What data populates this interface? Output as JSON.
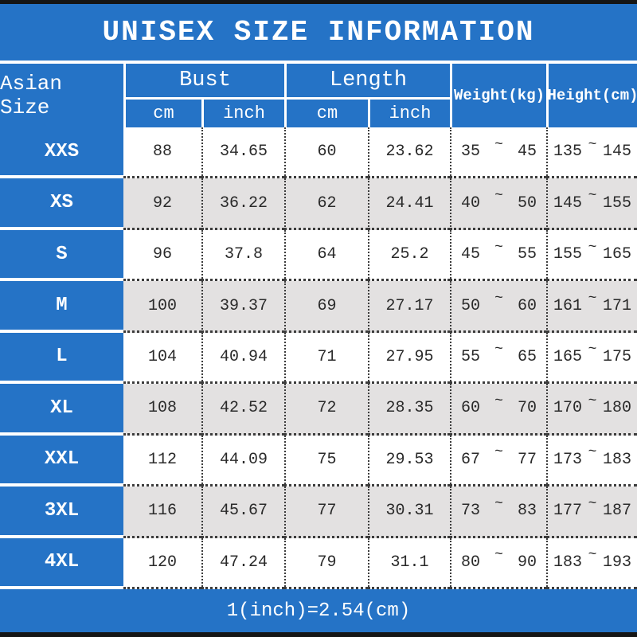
{
  "title": "UNISEX SIZE INFORMATION",
  "footer_note": "1(inch)=2.54(cm)",
  "tilde": "~",
  "colors": {
    "blue": "#2573c6",
    "alt_row_gray": "#e3e1e1",
    "top_bottom_bar": "#151515",
    "text": "#2a2a2a"
  },
  "header": {
    "size_column": "Asian Size",
    "bust_group": "Bust",
    "length_group": "Length",
    "sub_cm": "cm",
    "sub_inch": "inch",
    "weight_column": "Weight(kg)",
    "height_column": "Height(cm)"
  },
  "rows": [
    {
      "size": "XXS",
      "bust_cm": "88",
      "bust_inch": "34.65",
      "length_cm": "60",
      "length_inch": "23.62",
      "weight_min": "35",
      "weight_max": "45",
      "height_min": "135",
      "height_max": "145"
    },
    {
      "size": "XS",
      "bust_cm": "92",
      "bust_inch": "36.22",
      "length_cm": "62",
      "length_inch": "24.41",
      "weight_min": "40",
      "weight_max": "50",
      "height_min": "145",
      "height_max": "155"
    },
    {
      "size": "S",
      "bust_cm": "96",
      "bust_inch": "37.8",
      "length_cm": "64",
      "length_inch": "25.2",
      "weight_min": "45",
      "weight_max": "55",
      "height_min": "155",
      "height_max": "165"
    },
    {
      "size": "M",
      "bust_cm": "100",
      "bust_inch": "39.37",
      "length_cm": "69",
      "length_inch": "27.17",
      "weight_min": "50",
      "weight_max": "60",
      "height_min": "161",
      "height_max": "171"
    },
    {
      "size": "L",
      "bust_cm": "104",
      "bust_inch": "40.94",
      "length_cm": "71",
      "length_inch": "27.95",
      "weight_min": "55",
      "weight_max": "65",
      "height_min": "165",
      "height_max": "175"
    },
    {
      "size": "XL",
      "bust_cm": "108",
      "bust_inch": "42.52",
      "length_cm": "72",
      "length_inch": "28.35",
      "weight_min": "60",
      "weight_max": "70",
      "height_min": "170",
      "height_max": "180"
    },
    {
      "size": "XXL",
      "bust_cm": "112",
      "bust_inch": "44.09",
      "length_cm": "75",
      "length_inch": "29.53",
      "weight_min": "67",
      "weight_max": "77",
      "height_min": "173",
      "height_max": "183"
    },
    {
      "size": "3XL",
      "bust_cm": "116",
      "bust_inch": "45.67",
      "length_cm": "77",
      "length_inch": "30.31",
      "weight_min": "73",
      "weight_max": "83",
      "height_min": "177",
      "height_max": "187"
    },
    {
      "size": "4XL",
      "bust_cm": "120",
      "bust_inch": "47.24",
      "length_cm": "79",
      "length_inch": "31.1",
      "weight_min": "80",
      "weight_max": "90",
      "height_min": "183",
      "height_max": "193"
    }
  ]
}
